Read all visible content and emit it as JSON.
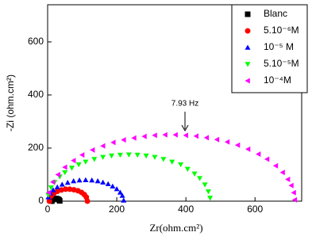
{
  "chart_data": {
    "type": "scatter",
    "x_label": "Zr(ohm.cm²)",
    "y_label": "-Zi (ohm.cm²)",
    "annotation": "7.93 Hz",
    "xlim": [
      0,
      735
    ],
    "ylim": [
      0,
      740
    ],
    "xticks": [
      0,
      200,
      400,
      600
    ],
    "yticks": [
      0,
      200,
      400,
      600
    ],
    "legend": "upper right",
    "series": [
      {
        "name": "Blanc",
        "color": "#000000",
        "marker": "square",
        "x": [
          12,
          15,
          20,
          25,
          30,
          33,
          35
        ],
        "values": [
          0,
          6,
          9,
          10,
          8,
          5,
          1
        ]
      },
      {
        "name": "5.10⁻⁶M",
        "color": "#ff0000",
        "marker": "circle",
        "x": [
          5,
          10,
          18,
          28,
          40,
          52,
          64,
          76,
          88,
          98,
          106,
          112,
          115
        ],
        "values": [
          0,
          19,
          29,
          37,
          42,
          45,
          45,
          43,
          39,
          33,
          25,
          15,
          0
        ]
      },
      {
        "name": "10⁻⁵ M",
        "color": "#0000ff",
        "marker": "triangle-up",
        "x": [
          2,
          8,
          16,
          28,
          42,
          58,
          75,
          92,
          110,
          128,
          145,
          160,
          175,
          188,
          200,
          210,
          216,
          220
        ],
        "values": [
          15,
          30,
          42,
          53,
          63,
          70,
          76,
          79,
          80,
          79,
          76,
          71,
          65,
          56,
          46,
          33,
          21,
          3
        ]
      },
      {
        "name": "5.10⁻⁵M",
        "color": "#00ff00",
        "marker": "triangle-down",
        "x": [
          2,
          10,
          20,
          35,
          50,
          70,
          90,
          110,
          135,
          160,
          185,
          210,
          235,
          260,
          285,
          310,
          335,
          360,
          385,
          405,
          425,
          440,
          455,
          465,
          470
        ],
        "values": [
          23,
          51,
          71,
          92,
          108,
          125,
          138,
          148,
          158,
          166,
          171,
          174,
          175,
          174,
          171,
          166,
          158,
          148,
          138,
          121,
          103,
          86,
          62,
          36,
          12
        ]
      },
      {
        "name": "10⁻⁴M",
        "color": "#ff00ff",
        "marker": "triangle-left",
        "x": [
          3,
          15,
          30,
          50,
          75,
          100,
          130,
          160,
          190,
          220,
          250,
          280,
          310,
          340,
          370,
          400,
          430,
          460,
          490,
          520,
          550,
          580,
          610,
          635,
          660,
          680,
          695,
          705,
          712,
          715
        ],
        "values": [
          32,
          72,
          100,
          128,
          153,
          174,
          193,
          208,
          221,
          231,
          238,
          244,
          248,
          250,
          250,
          248,
          245,
          239,
          232,
          223,
          211,
          196,
          177,
          158,
          133,
          108,
          82,
          59,
          32,
          5
        ]
      }
    ]
  }
}
